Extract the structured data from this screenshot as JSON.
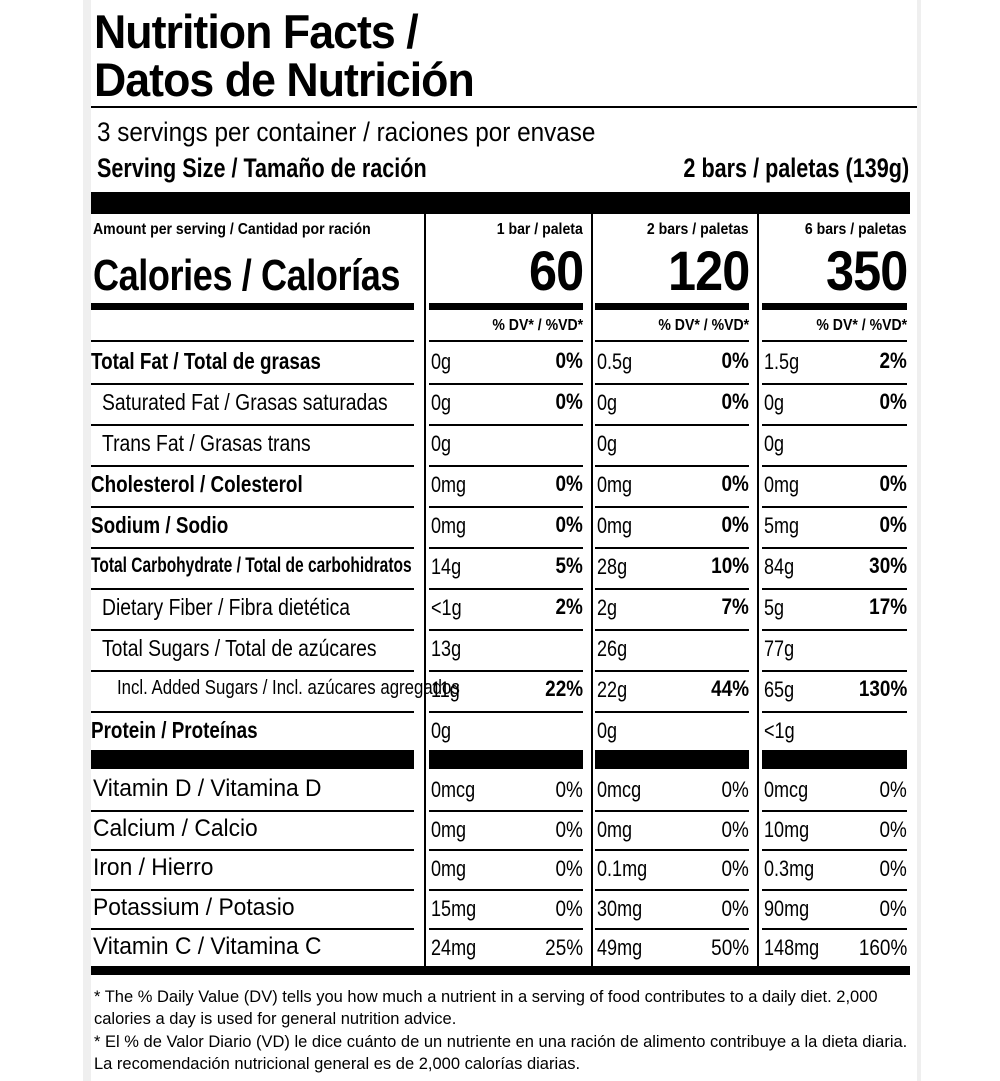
{
  "title_line1": "Nutrition Facts /",
  "title_line2": "Datos de Nutrición",
  "servings": "3 servings per container / raciones por envase",
  "serving_size_label": "Serving Size / Tamaño de ración",
  "serving_size_value": "2 bars / paletas (139g)",
  "amount_per_serving": "Amount per serving / Cantidad por ración",
  "calories_label": "Calories / Calorías",
  "dv_header": "% DV* / %VD*",
  "columns": [
    {
      "header": "1 bar / paleta",
      "calories": "60"
    },
    {
      "header": "2 bars / paletas",
      "calories": "120"
    },
    {
      "header": "6 bars / paletas",
      "calories": "350"
    }
  ],
  "nutrients": [
    {
      "label": "Total Fat / Total de grasas",
      "bold": true,
      "indent": 0,
      "vals": [
        [
          "0g",
          "0%"
        ],
        [
          "0.5g",
          "0%"
        ],
        [
          "1.5g",
          "2%"
        ]
      ]
    },
    {
      "label": "Saturated Fat / Grasas saturadas",
      "bold": false,
      "indent": 1,
      "vals": [
        [
          "0g",
          "0%"
        ],
        [
          "0g",
          "0%"
        ],
        [
          "0g",
          "0%"
        ]
      ]
    },
    {
      "label": "Trans Fat / Grasas trans",
      "bold": false,
      "indent": 1,
      "vals": [
        [
          "0g",
          ""
        ],
        [
          "0g",
          ""
        ],
        [
          "0g",
          ""
        ]
      ]
    },
    {
      "label": "Cholesterol / Colesterol",
      "bold": true,
      "indent": 0,
      "vals": [
        [
          "0mg",
          "0%"
        ],
        [
          "0mg",
          "0%"
        ],
        [
          "0mg",
          "0%"
        ]
      ]
    },
    {
      "label": "Sodium / Sodio",
      "bold": true,
      "indent": 0,
      "vals": [
        [
          "0mg",
          "0%"
        ],
        [
          "0mg",
          "0%"
        ],
        [
          "5mg",
          "0%"
        ]
      ]
    },
    {
      "label": "Total Carbohydrate / Total de carbohidratos",
      "bold": true,
      "indent": 0,
      "vals": [
        [
          "14g",
          "5%"
        ],
        [
          "28g",
          "10%"
        ],
        [
          "84g",
          "30%"
        ]
      ]
    },
    {
      "label": "Dietary Fiber / Fibra dietética",
      "bold": false,
      "indent": 1,
      "vals": [
        [
          "<1g",
          "2%"
        ],
        [
          "2g",
          "7%"
        ],
        [
          "5g",
          "17%"
        ]
      ]
    },
    {
      "label": "Total Sugars / Total de azúcares",
      "bold": false,
      "indent": 1,
      "vals": [
        [
          "13g",
          ""
        ],
        [
          "26g",
          ""
        ],
        [
          "77g",
          ""
        ]
      ]
    },
    {
      "label": "Incl. Added Sugars / Incl. azúcares agregados",
      "bold": false,
      "indent": 2,
      "vals": [
        [
          "11g",
          "22%"
        ],
        [
          "22g",
          "44%"
        ],
        [
          "65g",
          "130%"
        ]
      ]
    },
    {
      "label": "Protein / Proteínas",
      "bold": true,
      "indent": 0,
      "vals": [
        [
          "0g",
          ""
        ],
        [
          "0g",
          ""
        ],
        [
          "<1g",
          ""
        ]
      ]
    }
  ],
  "vitamins": [
    {
      "label": "Vitamin D / Vitamina D",
      "vals": [
        [
          "0mcg",
          "0%"
        ],
        [
          "0mcg",
          "0%"
        ],
        [
          "0mcg",
          "0%"
        ]
      ]
    },
    {
      "label": "Calcium / Calcio",
      "vals": [
        [
          "0mg",
          "0%"
        ],
        [
          "0mg",
          "0%"
        ],
        [
          "10mg",
          "0%"
        ]
      ]
    },
    {
      "label": "Iron / Hierro",
      "vals": [
        [
          "0mg",
          "0%"
        ],
        [
          "0.1mg",
          "0%"
        ],
        [
          "0.3mg",
          "0%"
        ]
      ]
    },
    {
      "label": "Potassium / Potasio",
      "vals": [
        [
          "15mg",
          "0%"
        ],
        [
          "30mg",
          "0%"
        ],
        [
          "90mg",
          "0%"
        ]
      ]
    },
    {
      "label": "Vitamin C / Vitamina C",
      "vals": [
        [
          "24mg",
          "25%"
        ],
        [
          "49mg",
          "50%"
        ],
        [
          "148mg",
          "160%"
        ]
      ]
    }
  ],
  "footnote_en": "* The % Daily Value (DV) tells you how much a nutrient in a serving of food contributes to a daily diet. 2,000 calories a day is used for general nutrition advice.",
  "footnote_es": "* El % de Valor Diario (VD) le dice cuánto de un nutriente en una ración de alimento contribuye a la dieta diaria. La recomendación nutricional general es de 2,000 calorías diarias."
}
